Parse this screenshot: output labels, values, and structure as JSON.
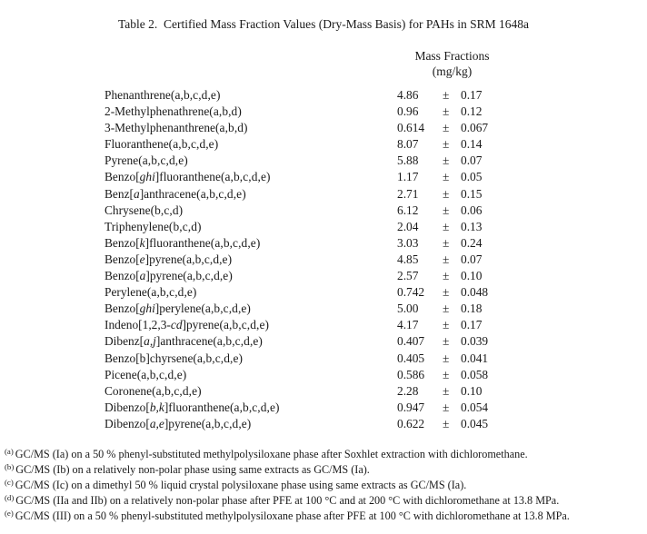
{
  "title": "Table 2.  Certified Mass Fraction Values (Dry-Mass Basis) for PAHs in SRM 1648a",
  "column_header": {
    "line1": "Mass Fractions",
    "line2": "(mg/kg)"
  },
  "table": {
    "rows": [
      {
        "name": [
          {
            "t": "Phenanthrene"
          }
        ],
        "sup": "(a,b,c,d,e)",
        "value": "4.86",
        "pm": "±",
        "unc": "0.17"
      },
      {
        "name": [
          {
            "t": "2-Methylphenathrene"
          }
        ],
        "sup": "(a,b,d)",
        "value": "0.96",
        "pm": "±",
        "unc": "0.12"
      },
      {
        "name": [
          {
            "t": "3-Methylphenanthrene"
          }
        ],
        "sup": "(a,b,d)",
        "value": "0.614",
        "pm": "±",
        "unc": "0.067"
      },
      {
        "name": [
          {
            "t": "Fluoranthene"
          }
        ],
        "sup": "(a,b,c,d,e)",
        "value": "8.07",
        "pm": "±",
        "unc": "0.14"
      },
      {
        "name": [
          {
            "t": "Pyrene"
          }
        ],
        "sup": "(a,b,c,d,e)",
        "value": "5.88",
        "pm": "±",
        "unc": "0.07"
      },
      {
        "name": [
          {
            "t": "Benzo["
          },
          {
            "t": "ghi",
            "i": true
          },
          {
            "t": "]fluoranthene"
          }
        ],
        "sup": "(a,b,c,d,e)",
        "value": "1.17",
        "pm": "±",
        "unc": "0.05"
      },
      {
        "name": [
          {
            "t": "Benz["
          },
          {
            "t": "a",
            "i": true
          },
          {
            "t": "]anthracene"
          }
        ],
        "sup": "(a,b,c,d,e)",
        "value": "2.71",
        "pm": "±",
        "unc": "0.15"
      },
      {
        "name": [
          {
            "t": "Chrysene"
          }
        ],
        "sup": "(b,c,d)",
        "value": "6.12",
        "pm": "±",
        "unc": "0.06"
      },
      {
        "name": [
          {
            "t": "Triphenylene"
          }
        ],
        "sup": "(b,c,d)",
        "value": "2.04",
        "pm": "±",
        "unc": "0.13"
      },
      {
        "name": [
          {
            "t": "Benzo["
          },
          {
            "t": "k",
            "i": true
          },
          {
            "t": "]fluoranthene"
          }
        ],
        "sup": "(a,b,c,d,e)",
        "value": "3.03",
        "pm": "±",
        "unc": "0.24"
      },
      {
        "name": [
          {
            "t": "Benzo["
          },
          {
            "t": "e",
            "i": true
          },
          {
            "t": "]pyrene"
          }
        ],
        "sup": "(a,b,c,d,e)",
        "value": "4.85",
        "pm": "±",
        "unc": "0.07"
      },
      {
        "name": [
          {
            "t": "Benzo["
          },
          {
            "t": "a",
            "i": true
          },
          {
            "t": "]pyrene"
          }
        ],
        "sup": "(a,b,c,d,e)",
        "value": "2.57",
        "pm": "±",
        "unc": "0.10"
      },
      {
        "name": [
          {
            "t": "Perylene"
          }
        ],
        "sup": "(a,b,c,d,e)",
        "value": "0.742",
        "pm": "±",
        "unc": "0.048"
      },
      {
        "name": [
          {
            "t": "Benzo["
          },
          {
            "t": "ghi",
            "i": true
          },
          {
            "t": "]perylene"
          }
        ],
        "sup": "(a,b,c,d,e)",
        "value": "5.00",
        "pm": "±",
        "unc": "0.18"
      },
      {
        "name": [
          {
            "t": "Indeno[1,2,3-"
          },
          {
            "t": "cd",
            "i": true
          },
          {
            "t": "]pyrene"
          }
        ],
        "sup": "(a,b,c,d,e)",
        "value": "4.17",
        "pm": "±",
        "unc": "0.17"
      },
      {
        "name": [
          {
            "t": "Dibenz["
          },
          {
            "t": "a,j",
            "i": true
          },
          {
            "t": "]anthracene"
          }
        ],
        "sup": "(a,b,c,d,e)",
        "value": "0.407",
        "pm": "±",
        "unc": "0.039"
      },
      {
        "name": [
          {
            "t": "Benzo[b]chyrsene"
          }
        ],
        "sup": "(a,b,c,d,e)",
        "value": "0.405",
        "pm": "±",
        "unc": "0.041"
      },
      {
        "name": [
          {
            "t": "Picene"
          }
        ],
        "sup": "(a,b,c,d,e)",
        "value": "0.586",
        "pm": "±",
        "unc": "0.058"
      },
      {
        "name": [
          {
            "t": "Coronene"
          }
        ],
        "sup": "(a,b,c,d,e)",
        "value": "2.28",
        "pm": "±",
        "unc": "0.10"
      },
      {
        "name": [
          {
            "t": "Dibenzo["
          },
          {
            "t": "b,k",
            "i": true
          },
          {
            "t": "]fluoranthene"
          }
        ],
        "sup": "(a,b,c,d,e)",
        "value": "0.947",
        "pm": "±",
        "unc": "0.054"
      },
      {
        "name": [
          {
            "t": "Dibenzo["
          },
          {
            "t": "a,e",
            "i": true
          },
          {
            "t": "]pyrene"
          }
        ],
        "sup": "(a,b,c,d,e)",
        "value": "0.622",
        "pm": "±",
        "unc": "0.045"
      }
    ]
  },
  "footnotes": [
    {
      "marker": "(a)",
      "text": "GC/MS (Ia) on a 50 % phenyl-substituted methylpolysiloxane phase after Soxhlet extraction with dichloromethane."
    },
    {
      "marker": "(b)",
      "text": "GC/MS (Ib) on a relatively non-polar phase using same extracts as GC/MS (Ia)."
    },
    {
      "marker": "(c)",
      "text": "GC/MS (Ic) on a dimethyl 50 % liquid crystal polysiloxane phase using same extracts as GC/MS (Ia)."
    },
    {
      "marker": "(d)",
      "text": "GC/MS (IIa and IIb) on a relatively non-polar phase after PFE at 100 °C and at 200 °C with dichloromethane at 13.8 MPa."
    },
    {
      "marker": "(e)",
      "text": "GC/MS (III) on a 50 % phenyl-substituted methylpolysiloxane phase after PFE at 100 °C with dichloromethane at 13.8 MPa."
    }
  ]
}
